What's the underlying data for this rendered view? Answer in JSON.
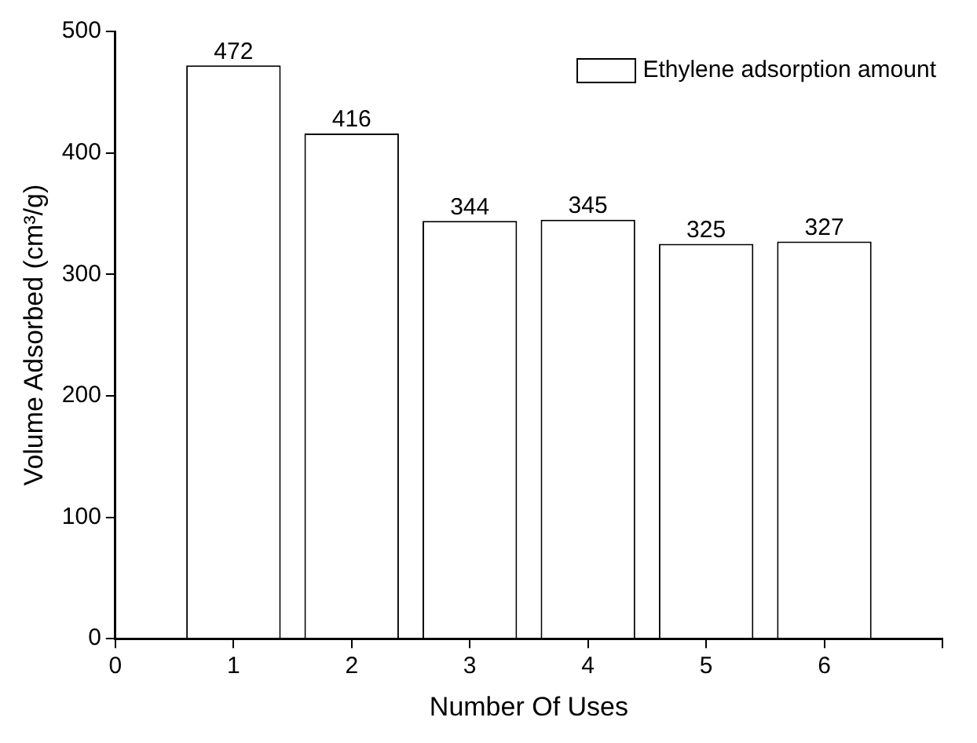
{
  "chart_data": {
    "type": "bar",
    "xlabel": "Number Of Uses",
    "ylabel": "Volume Adsorbed (cm³/g)",
    "x": [
      1,
      2,
      3,
      4,
      5,
      6
    ],
    "series": [
      {
        "name": "Ethylene adsorption amount",
        "color": "#ffffff",
        "values": [
          472,
          416,
          344,
          345,
          325,
          327
        ]
      }
    ],
    "xlim": [
      0,
      7
    ],
    "xticks": [
      0,
      1,
      2,
      3,
      4,
      5,
      6,
      {
        "value": 7,
        "label": null
      }
    ],
    "ylim": [
      0,
      500
    ],
    "yticks": [
      0,
      100,
      200,
      300,
      400,
      500
    ],
    "data_labels": true,
    "legend": "top right",
    "grid": false
  }
}
